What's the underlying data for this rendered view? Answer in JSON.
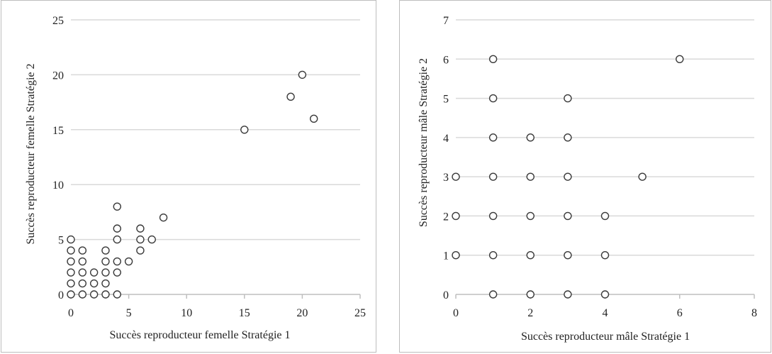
{
  "chart_data": [
    {
      "type": "scatter",
      "title": "",
      "xlabel": "Succès reproducteur  femelle Stratégie 1",
      "ylabel": "Succès reproducteur  femelle Stratégie 2",
      "xlim": [
        0,
        25
      ],
      "ylim": [
        0,
        25
      ],
      "xticks": [
        "0",
        "5",
        "10",
        "15",
        "20",
        "25"
      ],
      "yticks": [
        "0",
        "5",
        "10",
        "15",
        "20",
        "25"
      ],
      "grid": "horizontal",
      "legend": "none",
      "points": [
        [
          0,
          0
        ],
        [
          0,
          1
        ],
        [
          0,
          2
        ],
        [
          0,
          3
        ],
        [
          0,
          4
        ],
        [
          0,
          5
        ],
        [
          1,
          0
        ],
        [
          1,
          1
        ],
        [
          1,
          2
        ],
        [
          1,
          3
        ],
        [
          1,
          4
        ],
        [
          2,
          0
        ],
        [
          2,
          1
        ],
        [
          2,
          2
        ],
        [
          3,
          0
        ],
        [
          3,
          1
        ],
        [
          3,
          2
        ],
        [
          3,
          3
        ],
        [
          3,
          4
        ],
        [
          4,
          0
        ],
        [
          4,
          2
        ],
        [
          4,
          3
        ],
        [
          4,
          5
        ],
        [
          4,
          6
        ],
        [
          4,
          8
        ],
        [
          5,
          3
        ],
        [
          6,
          4
        ],
        [
          6,
          5
        ],
        [
          6,
          6
        ],
        [
          7,
          5
        ],
        [
          8,
          7
        ],
        [
          15,
          15
        ],
        [
          19,
          18
        ],
        [
          20,
          20
        ],
        [
          21,
          16
        ]
      ]
    },
    {
      "type": "scatter",
      "title": "",
      "xlabel": "Succès reproducteur mâle Stratégie 1",
      "ylabel": "Succès reproducteur  mâle Stratégie 2",
      "xlim": [
        0,
        8
      ],
      "ylim": [
        0,
        7
      ],
      "xticks": [
        "0",
        "2",
        "4",
        "6",
        "8"
      ],
      "yticks": [
        "0",
        "1",
        "2",
        "3",
        "4",
        "5",
        "6",
        "7"
      ],
      "grid": "horizontal",
      "legend": "none",
      "points": [
        [
          0,
          1
        ],
        [
          0,
          2
        ],
        [
          0,
          3
        ],
        [
          1,
          0
        ],
        [
          1,
          1
        ],
        [
          1,
          2
        ],
        [
          1,
          3
        ],
        [
          1,
          4
        ],
        [
          1,
          5
        ],
        [
          1,
          6
        ],
        [
          2,
          0
        ],
        [
          2,
          1
        ],
        [
          2,
          2
        ],
        [
          2,
          3
        ],
        [
          2,
          4
        ],
        [
          3,
          0
        ],
        [
          3,
          1
        ],
        [
          3,
          2
        ],
        [
          3,
          3
        ],
        [
          3,
          4
        ],
        [
          3,
          5
        ],
        [
          4,
          0
        ],
        [
          4,
          1
        ],
        [
          4,
          2
        ],
        [
          5,
          3
        ],
        [
          6,
          6
        ]
      ]
    }
  ],
  "colors": {
    "grid": "#d9d9d9",
    "axis": "#bfbfbf",
    "marker_stroke": "#3a3a3a"
  }
}
